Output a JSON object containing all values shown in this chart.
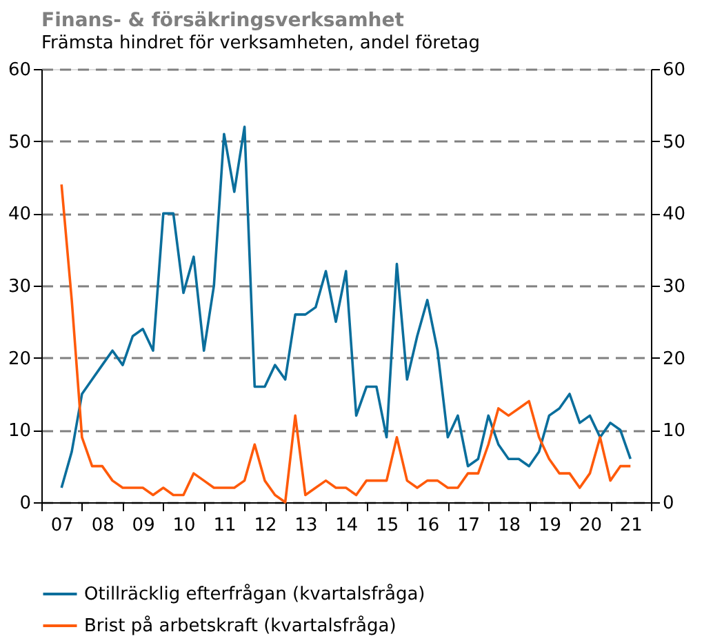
{
  "chart_data": {
    "type": "line",
    "title": "Finans- & försäkringsverksamhet",
    "subtitle": "Främsta hindret för verksamheten, andel företag",
    "x": [
      "2007-07",
      "2007-10",
      "2008-01",
      "2008-04",
      "2008-07",
      "2008-10",
      "2009-01",
      "2009-04",
      "2009-07",
      "2009-10",
      "2010-01",
      "2010-04",
      "2010-07",
      "2010-10",
      "2011-01",
      "2011-04",
      "2011-07",
      "2011-10",
      "2012-01",
      "2012-04",
      "2012-07",
      "2012-10",
      "2013-01",
      "2013-04",
      "2013-07",
      "2013-10",
      "2014-01",
      "2014-04",
      "2014-07",
      "2014-10",
      "2015-01",
      "2015-04",
      "2015-07",
      "2015-10",
      "2016-01",
      "2016-04",
      "2016-07",
      "2016-10",
      "2017-01",
      "2017-04",
      "2017-07",
      "2017-10",
      "2018-01",
      "2018-04",
      "2018-07",
      "2018-10",
      "2019-01",
      "2019-04",
      "2019-07",
      "2019-10",
      "2020-01",
      "2020-04",
      "2020-07",
      "2020-10",
      "2021-01",
      "2021-04",
      "2021-07"
    ],
    "series": [
      {
        "name": "Otillräcklig efterfrågan (kvartalsfråga)",
        "color": "#0a6e9c",
        "values": [
          2,
          7,
          15,
          17,
          19,
          21,
          19,
          23,
          24,
          21,
          40,
          40,
          29,
          34,
          21,
          30,
          51,
          43,
          52,
          16,
          16,
          19,
          17,
          26,
          26,
          27,
          32,
          25,
          32,
          12,
          16,
          16,
          9,
          33,
          17,
          23,
          28,
          21,
          9,
          12,
          5,
          6,
          12,
          8,
          6,
          6,
          5,
          7,
          12,
          13,
          15,
          11,
          12,
          9,
          11,
          10,
          6
        ]
      },
      {
        "name": "Brist på arbetskraft (kvartalsfråga)",
        "color": "#ff5a0a",
        "values": [
          44,
          28,
          9,
          5,
          5,
          3,
          2,
          2,
          2,
          1,
          2,
          1,
          1,
          4,
          3,
          2,
          2,
          2,
          3,
          8,
          3,
          1,
          0,
          12,
          1,
          2,
          3,
          2,
          2,
          1,
          3,
          3,
          3,
          9,
          3,
          2,
          3,
          3,
          2,
          2,
          4,
          4,
          8,
          13,
          12,
          13,
          14,
          9,
          6,
          4,
          4,
          2,
          4,
          9,
          3,
          5,
          5
        ]
      }
    ],
    "xlim": [
      "2007-01",
      "2022-01"
    ],
    "xticks": [
      {
        "value": "2007-01",
        "label": null
      },
      {
        "value": "2007-07",
        "label": "07"
      },
      {
        "value": "2008-01",
        "label": null
      },
      {
        "value": "2008-07",
        "label": "08"
      },
      {
        "value": "2009-01",
        "label": null
      },
      {
        "value": "2009-07",
        "label": "09"
      },
      {
        "value": "2010-01",
        "label": null
      },
      {
        "value": "2010-07",
        "label": "10"
      },
      {
        "value": "2011-01",
        "label": null
      },
      {
        "value": "2011-07",
        "label": "11"
      },
      {
        "value": "2012-01",
        "label": null
      },
      {
        "value": "2012-07",
        "label": "12"
      },
      {
        "value": "2013-01",
        "label": null
      },
      {
        "value": "2013-07",
        "label": "13"
      },
      {
        "value": "2014-01",
        "label": null
      },
      {
        "value": "2014-07",
        "label": "14"
      },
      {
        "value": "2015-01",
        "label": null
      },
      {
        "value": "2015-07",
        "label": "15"
      },
      {
        "value": "2016-01",
        "label": null
      },
      {
        "value": "2016-07",
        "label": "16"
      },
      {
        "value": "2017-01",
        "label": null
      },
      {
        "value": "2017-07",
        "label": "17"
      },
      {
        "value": "2018-01",
        "label": null
      },
      {
        "value": "2018-07",
        "label": "18"
      },
      {
        "value": "2019-01",
        "label": null
      },
      {
        "value": "2019-07",
        "label": "19"
      },
      {
        "value": "2020-01",
        "label": null
      },
      {
        "value": "2020-07",
        "label": "20"
      },
      {
        "value": "2021-01",
        "label": null
      },
      {
        "value": "2021-07",
        "label": "21"
      },
      {
        "value": "2022-01",
        "label": null
      }
    ],
    "ylim": [
      0,
      60
    ],
    "yticks": [
      0,
      10,
      20,
      30,
      40,
      50,
      60
    ],
    "y2lim": [
      0,
      60
    ],
    "y2ticks": [
      0,
      10,
      20,
      30,
      40,
      50,
      60
    ],
    "grid": "y",
    "legend": "bottom",
    "marker": "none",
    "line_style": "solid"
  }
}
